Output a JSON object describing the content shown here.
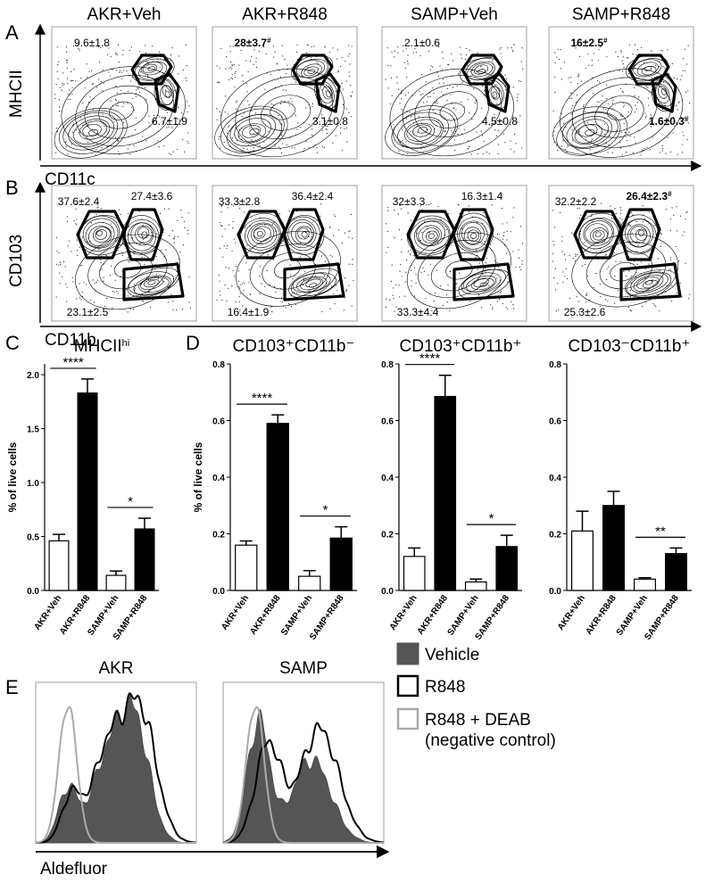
{
  "panel_labels": [
    "A",
    "B",
    "C",
    "D",
    "E"
  ],
  "flow_panels": [
    {
      "columns": [
        "AKR+Veh",
        "AKR+R848",
        "SAMP+Veh",
        "SAMP+R848"
      ],
      "y_label": "MHCII",
      "x_label": "CD11c",
      "gates": [
        [
          {
            "text": "9.6±1.8"
          },
          {
            "text": "6.7±1.9"
          }
        ],
        [
          {
            "text": "28±3.7",
            "sup": "#"
          },
          {
            "text": "3.1±0.8"
          }
        ],
        [
          {
            "text": "2.1±0.6"
          },
          {
            "text": "4.5±0.8"
          }
        ],
        [
          {
            "text": "16±2.5",
            "sup": "#"
          },
          {
            "text": "1.6±0.3",
            "sup": "#"
          }
        ]
      ]
    },
    {
      "y_label": "CD103",
      "x_label": "CD11b",
      "gates": [
        [
          {
            "text": "37.6±2.4"
          },
          {
            "text": "27.4±3.6"
          },
          {
            "text": "23.1±2.5"
          }
        ],
        [
          {
            "text": "33.3±2.8"
          },
          {
            "text": "36.4±2.4"
          },
          {
            "text": "16.4±1.9"
          }
        ],
        [
          {
            "text": "32±3.3"
          },
          {
            "text": "16.3±1.4"
          },
          {
            "text": "33.3±4.4"
          }
        ],
        [
          {
            "text": "32.2±2.2"
          },
          {
            "text": "26.4±2.3",
            "sup": "#"
          },
          {
            "text": "25.3±2.6"
          }
        ]
      ]
    }
  ],
  "chart_data": [
    {
      "type": "bar",
      "title": "MHCII",
      "title_sup": "hi",
      "y_label": "% of live cells",
      "categories": [
        "AKR+Veh",
        "AKR+R848",
        "SAMP+Veh",
        "SAMP+R848"
      ],
      "values": [
        0.46,
        1.83,
        0.14,
        0.57
      ],
      "errors": [
        0.06,
        0.13,
        0.04,
        0.1
      ],
      "colors": [
        "#ffffff",
        "#000000",
        "#ffffff",
        "#000000"
      ],
      "ylim": [
        0,
        2.1
      ],
      "yticks": [
        {
          "value": 0,
          "label": "0.0"
        },
        0.5,
        {
          "value": 1,
          "label": "1.0"
        },
        1.5,
        {
          "value": 2,
          "label": "2.0"
        }
      ],
      "significance": [
        "****",
        "*"
      ]
    },
    {
      "type": "bar",
      "title": "CD103⁺CD11b⁻",
      "y_label": "% of live cells",
      "categories": [
        "AKR+Veh",
        "AKR+R848",
        "SAMP+Veh",
        "SAMP+R848"
      ],
      "values": [
        0.16,
        0.59,
        0.05,
        0.185
      ],
      "errors": [
        0.015,
        0.03,
        0.02,
        0.04
      ],
      "colors": [
        "#ffffff",
        "#000000",
        "#ffffff",
        "#000000"
      ],
      "ylim": [
        0,
        0.8
      ],
      "yticks": [
        {
          "value": 0,
          "label": "0.0"
        },
        0.2,
        0.4,
        0.6,
        0.8
      ],
      "significance": [
        "****",
        "*"
      ]
    },
    {
      "type": "bar",
      "title": "CD103⁺CD11b⁺",
      "categories": [
        "AKR+Veh",
        "AKR+R848",
        "SAMP+Veh",
        "SAMP+R848"
      ],
      "values": [
        0.12,
        0.685,
        0.03,
        0.155
      ],
      "errors": [
        0.03,
        0.075,
        0.01,
        0.04
      ],
      "colors": [
        "#ffffff",
        "#000000",
        "#ffffff",
        "#000000"
      ],
      "ylim": [
        0,
        0.8
      ],
      "yticks": [
        {
          "value": 0,
          "label": "0.0"
        },
        0.2,
        0.4,
        0.6,
        0.8
      ],
      "significance": [
        "****",
        "*"
      ]
    },
    {
      "type": "bar",
      "title": "CD103⁻CD11b⁺",
      "categories": [
        "AKR+Veh",
        "AKR+R848",
        "SAMP+Veh",
        "SAMP+R848"
      ],
      "values": [
        0.21,
        0.3,
        0.04,
        0.13
      ],
      "errors": [
        0.07,
        0.05,
        0.005,
        0.02
      ],
      "colors": [
        "#ffffff",
        "#000000",
        "#ffffff",
        "#000000"
      ],
      "ylim": [
        0,
        0.8
      ],
      "yticks": [
        {
          "value": 0,
          "label": "0.0"
        },
        0.2,
        0.4,
        0.6,
        0.8
      ],
      "significance": [
        null,
        "**"
      ]
    }
  ],
  "histogram_panel": {
    "titles": [
      "AKR",
      "SAMP"
    ],
    "x_label": "Aldefluor",
    "legend": [
      "Vehicle",
      "R848",
      "R848 + DEAB",
      "(negative control)"
    ]
  }
}
